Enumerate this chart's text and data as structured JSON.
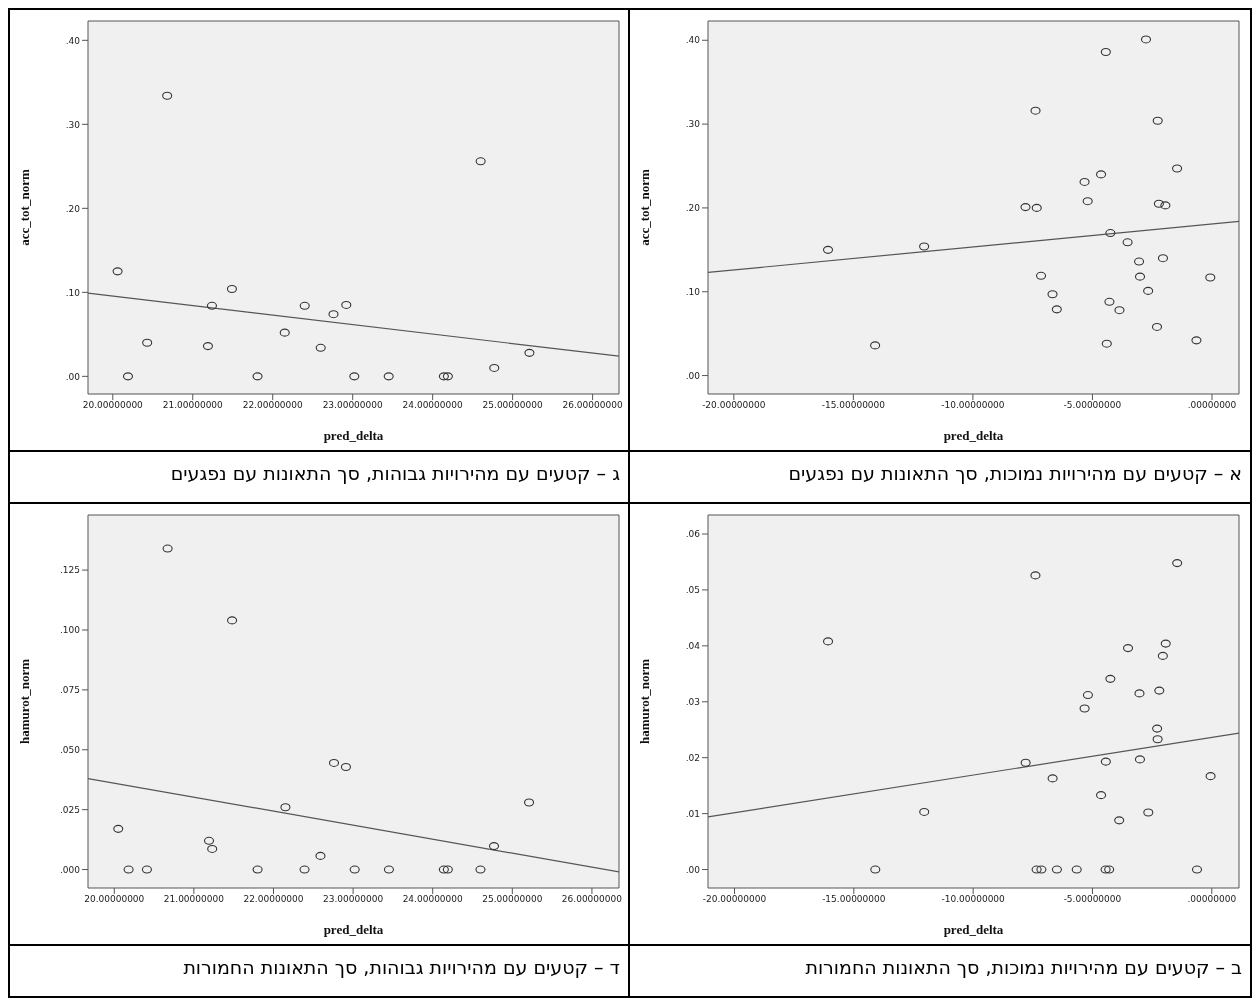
{
  "chart_data": [
    {
      "type": "scatter",
      "title": "ג – קטעים עם מהירויות גבוהות, סך התאונות עם נפגעים",
      "xlabel": "pred_delta",
      "ylabel": "acc_tot_norm",
      "grid": false,
      "legend": false,
      "xlim": [
        19.69,
        26.33
      ],
      "ylim": [
        -0.021,
        0.423
      ],
      "xticks": [
        {
          "value": 20,
          "label": "20.00000000"
        },
        {
          "value": 21,
          "label": "21.00000000"
        },
        {
          "value": 22,
          "label": "22.00000000"
        },
        {
          "value": 23,
          "label": "23.00000000"
        },
        {
          "value": 24,
          "label": "24.00000000"
        },
        {
          "value": 25,
          "label": "25.00000000"
        },
        {
          "value": 26,
          "label": "26.00000000"
        }
      ],
      "yticks": [
        {
          "value": 0,
          "label": ".00"
        },
        {
          "value": 0.1,
          "label": ".10"
        },
        {
          "value": 0.2,
          "label": ".20"
        },
        {
          "value": 0.3,
          "label": ".30"
        },
        {
          "value": 0.4,
          "label": ".40"
        }
      ],
      "series": [
        {
          "marker": "circle",
          "color": "#333333",
          "x": [
            20.68,
            20.06,
            20.43,
            20.19,
            21.49,
            21.24,
            21.19,
            21.81,
            22.15,
            22.4,
            22.6,
            22.76,
            22.92,
            23.02,
            23.45,
            24.14,
            24.19,
            24.6,
            24.77,
            25.21
          ],
          "values": [
            0.334,
            0.125,
            0.04,
            0,
            0.104,
            0.084,
            0.036,
            0,
            0.052,
            0.084,
            0.034,
            0.074,
            0.085,
            0,
            0,
            0,
            0,
            0.256,
            0.01,
            0.028
          ]
        },
        {
          "type": "line",
          "marker": "none",
          "color": "#555555",
          "x": [
            19.69,
            26.33
          ],
          "values": [
            0.099,
            0.024
          ]
        }
      ]
    },
    {
      "type": "scatter",
      "title": "א – קטעים עם מהירויות נמוכות, סך התאונות עם נפגעים",
      "xlabel": "pred_delta",
      "ylabel": "acc_tot_norm",
      "grid": false,
      "legend": false,
      "xlim": [
        -21.08,
        1.13
      ],
      "ylim": [
        -0.022,
        0.423
      ],
      "xticks": [
        {
          "value": -20,
          "label": "-20.00000000"
        },
        {
          "value": -15,
          "label": "-15.00000000"
        },
        {
          "value": -10,
          "label": "-10.00000000"
        },
        {
          "value": -5,
          "label": "-5.00000000"
        },
        {
          "value": 0,
          "label": ".00000000"
        }
      ],
      "yticks": [
        {
          "value": 0,
          "label": ".00"
        },
        {
          "value": 0.1,
          "label": ".10"
        },
        {
          "value": 0.2,
          "label": ".20"
        },
        {
          "value": 0.3,
          "label": ".30"
        },
        {
          "value": 0.4,
          "label": ".40"
        }
      ],
      "series": [
        {
          "marker": "circle",
          "color": "#333333",
          "x": [
            -16.06,
            -12.04,
            -14.09,
            -7.8,
            -7.33,
            -7.38,
            -7.15,
            -6.67,
            -6.49,
            -5.33,
            -5.2,
            -4.64,
            -4.44,
            -4.25,
            -4.29,
            -4.4,
            -3.87,
            -3.53,
            -3.05,
            -3.01,
            -2.76,
            -2.67,
            -2.27,
            -2.3,
            -2.22,
            -1.95,
            -2.05,
            -1.46,
            -0.65,
            -0.07
          ],
          "values": [
            0.15,
            0.154,
            0.036,
            0.201,
            0.2,
            0.316,
            0.119,
            0.097,
            0.079,
            0.231,
            0.208,
            0.24,
            0.386,
            0.17,
            0.088,
            0.038,
            0.078,
            0.159,
            0.136,
            0.118,
            0.401,
            0.101,
            0.304,
            0.058,
            0.205,
            0.203,
            0.14,
            0.247,
            0.042,
            0.117
          ]
        },
        {
          "type": "line",
          "marker": "none",
          "color": "#555555",
          "x": [
            -21.08,
            1.13
          ],
          "values": [
            0.123,
            0.184
          ]
        }
      ]
    },
    {
      "type": "scatter",
      "title": "ד – קטעים עם מהירויות גבוהות, סך התאונות החמורות",
      "xlabel": "pred_delta",
      "ylabel": "hamurot_norm",
      "grid": false,
      "legend": false,
      "xlim": [
        19.67,
        26.34
      ],
      "ylim": [
        -0.0077,
        0.148
      ],
      "xticks": [
        {
          "value": 20,
          "label": "20.00000000"
        },
        {
          "value": 21,
          "label": "21.00000000"
        },
        {
          "value": 22,
          "label": "22.00000000"
        },
        {
          "value": 23,
          "label": "23.00000000"
        },
        {
          "value": 24,
          "label": "24.00000000"
        },
        {
          "value": 25,
          "label": "25.00000000"
        },
        {
          "value": 26,
          "label": "26.00000000"
        }
      ],
      "yticks": [
        {
          "value": 0,
          "label": ".000"
        },
        {
          "value": 0.025,
          "label": ".025"
        },
        {
          "value": 0.05,
          "label": ".050"
        },
        {
          "value": 0.075,
          "label": ".075"
        },
        {
          "value": 0.1,
          "label": ".100"
        },
        {
          "value": 0.125,
          "label": ".125"
        }
      ],
      "series": [
        {
          "marker": "circle",
          "color": "#333333",
          "x": [
            20.67,
            21.48,
            20.05,
            20.18,
            20.41,
            21.19,
            21.23,
            21.8,
            22.15,
            22.39,
            22.59,
            22.76,
            22.91,
            23.02,
            23.45,
            24.14,
            24.19,
            24.6,
            24.77,
            25.21
          ],
          "values": [
            0.134,
            0.104,
            0.017,
            0,
            0,
            0.012,
            0.0086,
            0,
            0.026,
            0,
            0.0057,
            0.0445,
            0.0428,
            0,
            0,
            0,
            0,
            0,
            0.0098,
            0.028
          ]
        },
        {
          "type": "line",
          "marker": "none",
          "color": "#555555",
          "x": [
            19.67,
            26.34
          ],
          "values": [
            0.038,
            -0.001
          ]
        }
      ]
    },
    {
      "type": "scatter",
      "title": "ב – קטעים עם מהירויות נמוכות, סך התאונות החמורות",
      "xlabel": "pred_delta",
      "ylabel": "hamurot_norm",
      "grid": false,
      "legend": false,
      "xlim": [
        -21.11,
        1.14
      ],
      "ylim": [
        -0.0033,
        0.0634
      ],
      "xticks": [
        {
          "value": -20,
          "label": "-20.00000000"
        },
        {
          "value": -15,
          "label": "-15.00000000"
        },
        {
          "value": -10,
          "label": "-10.00000000"
        },
        {
          "value": -5,
          "label": "-5.00000000"
        },
        {
          "value": 0,
          "label": ".00000000"
        }
      ],
      "yticks": [
        {
          "value": 0,
          "label": ".00"
        },
        {
          "value": 0.01,
          "label": ".01"
        },
        {
          "value": 0.02,
          "label": ".02"
        },
        {
          "value": 0.03,
          "label": ".03"
        },
        {
          "value": 0.04,
          "label": ".04"
        },
        {
          "value": 0.05,
          "label": ".05"
        },
        {
          "value": 0.06,
          "label": ".06"
        }
      ],
      "series": [
        {
          "marker": "circle",
          "color": "#333333",
          "x": [
            -16.08,
            -14.1,
            -12.05,
            -7.8,
            -7.39,
            -7.34,
            -7.14,
            -6.67,
            -6.49,
            -5.66,
            -5.33,
            -5.19,
            -4.64,
            -4.44,
            -4.45,
            -4.3,
            -4.25,
            -3.88,
            -3.51,
            -3.03,
            -3.01,
            -2.66,
            -2.29,
            -2.27,
            -2.2,
            -2.05,
            -1.93,
            -1.45,
            -0.62,
            -0.05
          ],
          "values": [
            0.0408,
            0,
            0.0103,
            0.0191,
            0.0526,
            0,
            0,
            0.0163,
            0,
            0,
            0.0288,
            0.0312,
            0.0133,
            0.0193,
            0,
            0,
            0.0341,
            0.0088,
            0.0396,
            0.0315,
            0.0197,
            0.0102,
            0.0252,
            0.0233,
            0.032,
            0.0382,
            0.0404,
            0.0548,
            0,
            0.0167
          ]
        },
        {
          "type": "line",
          "marker": "none",
          "color": "#555555",
          "x": [
            -21.11,
            1.14
          ],
          "values": [
            0.0094,
            0.0244
          ]
        }
      ]
    }
  ]
}
